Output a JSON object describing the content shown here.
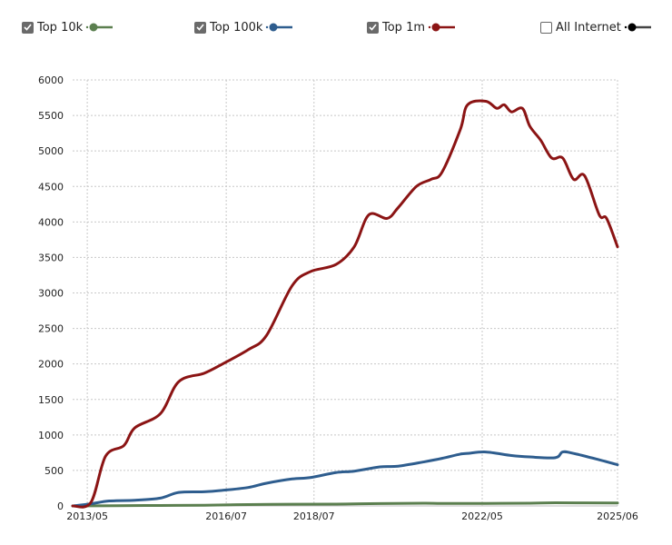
{
  "legend": [
    {
      "label": "Top 10k",
      "checked": true,
      "color": "#5b7f4f"
    },
    {
      "label": "Top 100k",
      "checked": true,
      "color": "#2e5d8e"
    },
    {
      "label": "Top 1m",
      "checked": true,
      "color": "#8b1414"
    },
    {
      "label": "All Internet",
      "checked": false,
      "color": "#1a1a1a"
    }
  ],
  "chart_data": {
    "type": "line",
    "title": "",
    "xlabel": "",
    "ylabel": "",
    "xlim": [
      "2013-01",
      "2025-06"
    ],
    "ylim": [
      0,
      6000
    ],
    "yticks": [
      0,
      500,
      1000,
      1500,
      2000,
      2500,
      3000,
      3500,
      4000,
      4500,
      5000,
      5500,
      6000
    ],
    "xticks": [
      "2013/05",
      "2016/07",
      "2018/07",
      "2022/05",
      "2025/06"
    ],
    "grid": true,
    "legend_position": "top",
    "series": [
      {
        "name": "Top 10k",
        "color": "#5b7f4f",
        "points": [
          [
            "2013-01",
            0
          ],
          [
            "2013-06",
            2
          ],
          [
            "2014-01",
            4
          ],
          [
            "2015-01",
            7
          ],
          [
            "2016-01",
            9
          ],
          [
            "2017-01",
            20
          ],
          [
            "2018-01",
            24
          ],
          [
            "2019-01",
            26
          ],
          [
            "2020-01",
            34
          ],
          [
            "2021-01",
            38
          ],
          [
            "2021-06",
            36
          ],
          [
            "2022-06",
            36
          ],
          [
            "2023-06",
            38
          ],
          [
            "2024-01",
            44
          ],
          [
            "2025-06",
            42
          ]
        ]
      },
      {
        "name": "Top 100k",
        "color": "#2e5d8e",
        "points": [
          [
            "2013-01",
            0
          ],
          [
            "2013-06",
            30
          ],
          [
            "2013-11",
            70
          ],
          [
            "2014-06",
            80
          ],
          [
            "2015-01",
            110
          ],
          [
            "2015-06",
            190
          ],
          [
            "2016-01",
            200
          ],
          [
            "2016-06",
            220
          ],
          [
            "2017-01",
            260
          ],
          [
            "2017-06",
            320
          ],
          [
            "2018-01",
            380
          ],
          [
            "2018-06",
            400
          ],
          [
            "2019-01",
            470
          ],
          [
            "2019-06",
            490
          ],
          [
            "2020-01",
            550
          ],
          [
            "2020-06",
            560
          ],
          [
            "2021-01",
            620
          ],
          [
            "2021-06",
            670
          ],
          [
            "2021-11",
            730
          ],
          [
            "2022-01",
            740
          ],
          [
            "2022-06",
            760
          ],
          [
            "2023-01",
            710
          ],
          [
            "2023-06",
            690
          ],
          [
            "2024-01",
            680
          ],
          [
            "2024-03",
            760
          ],
          [
            "2024-06",
            740
          ],
          [
            "2025-01",
            650
          ],
          [
            "2025-06",
            580
          ]
        ]
      },
      {
        "name": "Top 1m",
        "color": "#8b1414",
        "points": [
          [
            "2013-01",
            0
          ],
          [
            "2013-06",
            50
          ],
          [
            "2013-10",
            700
          ],
          [
            "2014-03",
            850
          ],
          [
            "2014-06",
            1100
          ],
          [
            "2015-01",
            1300
          ],
          [
            "2015-06",
            1750
          ],
          [
            "2016-01",
            1870
          ],
          [
            "2016-06",
            2000
          ],
          [
            "2017-01",
            2200
          ],
          [
            "2017-06",
            2400
          ],
          [
            "2018-01",
            3100
          ],
          [
            "2018-06",
            3300
          ],
          [
            "2019-01",
            3400
          ],
          [
            "2019-06",
            3650
          ],
          [
            "2019-10",
            4100
          ],
          [
            "2020-03",
            4050
          ],
          [
            "2020-06",
            4200
          ],
          [
            "2020-11",
            4500
          ],
          [
            "2021-03",
            4600
          ],
          [
            "2021-06",
            4700
          ],
          [
            "2021-11",
            5300
          ],
          [
            "2022-01",
            5650
          ],
          [
            "2022-06",
            5700
          ],
          [
            "2022-09",
            5600
          ],
          [
            "2022-11",
            5650
          ],
          [
            "2023-01",
            5550
          ],
          [
            "2023-04",
            5600
          ],
          [
            "2023-06",
            5350
          ],
          [
            "2023-09",
            5150
          ],
          [
            "2023-12",
            4900
          ],
          [
            "2024-03",
            4900
          ],
          [
            "2024-06",
            4600
          ],
          [
            "2024-09",
            4650
          ],
          [
            "2025-01",
            4100
          ],
          [
            "2025-03",
            4050
          ],
          [
            "2025-06",
            3650
          ]
        ]
      }
    ]
  }
}
